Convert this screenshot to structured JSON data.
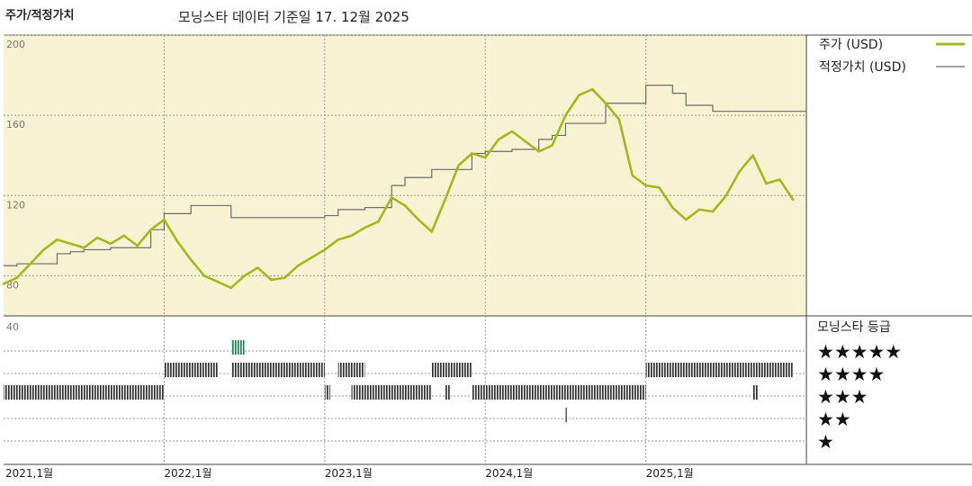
{
  "header": {
    "title": "주가/적정가치",
    "subtitle": "모닝스타 데이터 기준일 17. 12월 2025"
  },
  "legend": {
    "price_label": "주가 (USD)",
    "fair_label": "적정가치 (USD)",
    "price_color": "#a3b81e",
    "fair_color": "#6b6b6b"
  },
  "rating_panel": {
    "title": "모닝스타 등급",
    "levels": [
      "★★★★★",
      "★★★★",
      "★★★",
      "★★",
      "★"
    ]
  },
  "chart_data": {
    "type": "line",
    "ylim": [
      60,
      200
    ],
    "yticks": [
      "200",
      "160",
      "120",
      "80"
    ],
    "lower_tick": "40",
    "x_range": [
      "2021-01",
      "2026-01"
    ],
    "x_labels": [
      {
        "text": "2021,1월",
        "date": "2021-01"
      },
      {
        "text": "2022,1월",
        "date": "2022-01"
      },
      {
        "text": "2023,1월",
        "date": "2023-01"
      },
      {
        "text": "2024,1월",
        "date": "2024-01"
      },
      {
        "text": "2025,1월",
        "date": "2025-01"
      }
    ],
    "series": [
      {
        "name": "주가 (USD)",
        "points": [
          [
            "2021-01",
            76
          ],
          [
            "2021-02",
            79
          ],
          [
            "2021-03",
            86
          ],
          [
            "2021-04",
            93
          ],
          [
            "2021-05",
            98
          ],
          [
            "2021-06",
            96
          ],
          [
            "2021-07",
            94
          ],
          [
            "2021-08",
            99
          ],
          [
            "2021-09",
            96
          ],
          [
            "2021-10",
            100
          ],
          [
            "2021-11",
            95
          ],
          [
            "2021-12",
            103
          ],
          [
            "2022-01",
            108
          ],
          [
            "2022-02",
            97
          ],
          [
            "2022-03",
            88
          ],
          [
            "2022-04",
            80
          ],
          [
            "2022-05",
            77
          ],
          [
            "2022-06",
            74
          ],
          [
            "2022-07",
            80
          ],
          [
            "2022-08",
            84
          ],
          [
            "2022-09",
            78
          ],
          [
            "2022-10",
            79
          ],
          [
            "2022-11",
            85
          ],
          [
            "2022-12",
            89
          ],
          [
            "2023-01",
            93
          ],
          [
            "2023-02",
            98
          ],
          [
            "2023-03",
            100
          ],
          [
            "2023-04",
            104
          ],
          [
            "2023-05",
            107
          ],
          [
            "2023-06",
            119
          ],
          [
            "2023-07",
            115
          ],
          [
            "2023-08",
            108
          ],
          [
            "2023-09",
            102
          ],
          [
            "2023-10",
            118
          ],
          [
            "2023-11",
            135
          ],
          [
            "2023-12",
            141
          ],
          [
            "2024-01",
            139
          ],
          [
            "2024-02",
            148
          ],
          [
            "2024-03",
            152
          ],
          [
            "2024-04",
            147
          ],
          [
            "2024-05",
            142
          ],
          [
            "2024-06",
            145
          ],
          [
            "2024-07",
            160
          ],
          [
            "2024-08",
            170
          ],
          [
            "2024-09",
            173
          ],
          [
            "2024-10",
            166
          ],
          [
            "2024-11",
            158
          ],
          [
            "2024-12",
            130
          ],
          [
            "2025-01",
            125
          ],
          [
            "2025-02",
            124
          ],
          [
            "2025-03",
            114
          ],
          [
            "2025-04",
            108
          ],
          [
            "2025-05",
            113
          ],
          [
            "2025-06",
            112
          ],
          [
            "2025-07",
            120
          ],
          [
            "2025-08",
            132
          ],
          [
            "2025-09",
            140
          ],
          [
            "2025-10",
            126
          ],
          [
            "2025-11",
            128
          ],
          [
            "2025-12",
            118
          ]
        ]
      },
      {
        "name": "적정가치 (USD)",
        "points": [
          [
            "2021-01",
            85
          ],
          [
            "2021-02",
            86
          ],
          [
            "2021-05",
            91
          ],
          [
            "2021-06",
            92
          ],
          [
            "2021-07",
            93
          ],
          [
            "2021-09",
            94
          ],
          [
            "2021-10",
            94
          ],
          [
            "2021-12",
            103
          ],
          [
            "2022-01",
            111
          ],
          [
            "2022-03",
            115
          ],
          [
            "2022-05",
            115
          ],
          [
            "2022-06",
            109
          ],
          [
            "2022-12",
            109
          ],
          [
            "2023-01",
            110
          ],
          [
            "2023-02",
            113
          ],
          [
            "2023-03",
            113
          ],
          [
            "2023-04",
            114
          ],
          [
            "2023-06",
            125
          ],
          [
            "2023-07",
            129
          ],
          [
            "2023-09",
            133
          ],
          [
            "2023-11",
            133
          ],
          [
            "2023-12",
            141
          ],
          [
            "2024-01",
            142
          ],
          [
            "2024-03",
            143
          ],
          [
            "2024-05",
            148
          ],
          [
            "2024-06",
            150
          ],
          [
            "2024-07",
            156
          ],
          [
            "2024-10",
            166
          ],
          [
            "2024-12",
            166
          ],
          [
            "2025-01",
            175
          ],
          [
            "2025-03",
            171
          ],
          [
            "2025-04",
            165
          ],
          [
            "2025-06",
            162
          ],
          [
            "2025-12",
            162
          ]
        ]
      }
    ],
    "rating_bands": [
      {
        "stars": 5,
        "segments": [
          [
            "2022-06",
            "2022-07"
          ]
        ]
      },
      {
        "stars": 4,
        "segments": [
          [
            "2022-01",
            "2022-05"
          ],
          [
            "2022-06",
            "2023-01"
          ],
          [
            "2023-02",
            "2023-04"
          ],
          [
            "2023-09",
            "2023-10"
          ],
          [
            "2023-10",
            "2023-12"
          ],
          [
            "2025-01",
            "2025-09"
          ],
          [
            "2025-09",
            "2025-12"
          ]
        ]
      },
      {
        "stars": 3,
        "segments": [
          [
            "2021-01",
            "2022-01"
          ],
          [
            "2023-01",
            "2023-01"
          ],
          [
            "2023-03",
            "2023-09"
          ],
          [
            "2023-10",
            "2023-10"
          ],
          [
            "2023-12",
            "2025-01"
          ],
          [
            "2025-09",
            "2025-09"
          ]
        ]
      },
      {
        "stars": 2,
        "segments": [
          [
            "2024-07",
            "2024-07"
          ]
        ]
      }
    ]
  }
}
